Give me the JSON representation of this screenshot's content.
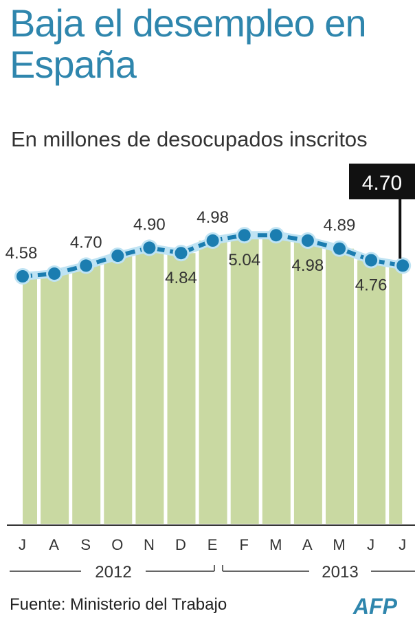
{
  "chart_data": {
    "type": "line",
    "title": "Baja el desempleo en España",
    "subtitle": "En millones de desocupados inscritos",
    "categories": [
      "J",
      "A",
      "S",
      "O",
      "N",
      "D",
      "E",
      "F",
      "M",
      "A",
      "M",
      "J",
      "J"
    ],
    "values": [
      4.58,
      4.61,
      4.7,
      4.81,
      4.9,
      4.84,
      4.98,
      5.04,
      5.04,
      4.98,
      4.89,
      4.76,
      4.7
    ],
    "data_labels": [
      "4.58",
      "",
      "4.70",
      "",
      "4.90",
      "4.84",
      "4.98",
      "5.04",
      "",
      "4.98",
      "4.89",
      "4.76",
      "4.70"
    ],
    "highlight_label": "4.70",
    "year_groups": [
      {
        "label": "2012"
      },
      {
        "label": "2013"
      }
    ],
    "source": "Fuente: Ministerio del Trabajo",
    "logo": "AFP",
    "grid": false,
    "colors": {
      "title": "#2f86ad",
      "bars": "#c9d9a2",
      "points": "#1b7db0",
      "line": "#1b7db0"
    }
  }
}
